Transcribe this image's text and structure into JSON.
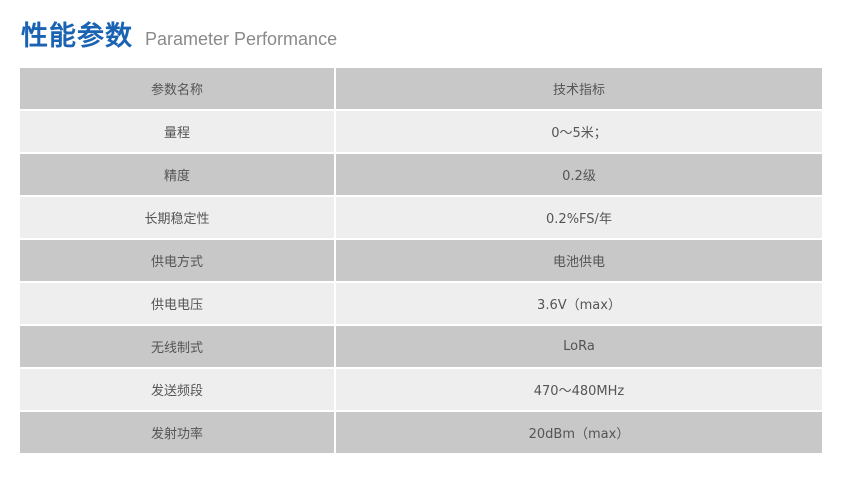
{
  "title": {
    "cn": "性能参数",
    "en": "Parameter Performance",
    "color": "#1a63b3"
  },
  "table": {
    "headers": [
      "参数名称",
      "技术指标"
    ],
    "rows": [
      [
        "量程",
        "0～5米；"
      ],
      [
        "精度",
        "0.2级"
      ],
      [
        "长期稳定性",
        "0.2%FS/年"
      ],
      [
        "供电方式",
        "电池供电"
      ],
      [
        "供电电压",
        "3.6V（max）"
      ],
      [
        "无线制式",
        "LoRa"
      ],
      [
        "发送频段",
        "470～480MHz"
      ],
      [
        "发射功率",
        "20dBm（max）"
      ]
    ]
  }
}
